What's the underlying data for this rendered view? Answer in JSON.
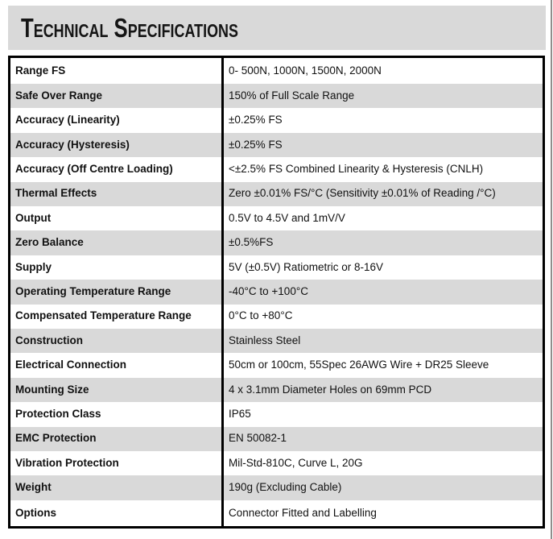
{
  "page": {
    "title": "Technical Specifications"
  },
  "colors": {
    "banner_bg": "#d9d9d9",
    "stripe_bg": "#d9d9d9",
    "table_border": "#000000",
    "text": "#111111",
    "page_edge_line": "#8f8e8c"
  },
  "table": {
    "rows": [
      {
        "label": "Range FS",
        "value": "0- 500N, 1000N, 1500N, 2000N"
      },
      {
        "label": "Safe Over Range",
        "value": "150% of Full Scale Range"
      },
      {
        "label": "Accuracy (Linearity)",
        "value": "±0.25% FS"
      },
      {
        "label": "Accuracy (Hysteresis)",
        "value": "±0.25% FS"
      },
      {
        "label": "Accuracy (Off Centre Loading)",
        "value": "<±2.5% FS Combined Linearity & Hysteresis (CNLH)"
      },
      {
        "label": "Thermal Effects",
        "value": "Zero ±0.01% FS/°C (Sensitivity ±0.01% of Reading /°C)"
      },
      {
        "label": "Output",
        "value": "0.5V to 4.5V and 1mV/V"
      },
      {
        "label": "Zero Balance",
        "value": "±0.5%FS"
      },
      {
        "label": "Supply",
        "value": "5V (±0.5V) Ratiometric or 8-16V"
      },
      {
        "label": "Operating Temperature Range",
        "value": "-40°C to +100°C"
      },
      {
        "label": "Compensated Temperature Range",
        "value": "0°C to +80°C"
      },
      {
        "label": "Construction",
        "value": "Stainless Steel"
      },
      {
        "label": "Electrical Connection",
        "value": "50cm or 100cm, 55Spec 26AWG Wire + DR25 Sleeve"
      },
      {
        "label": "Mounting Size",
        "value": "4 x 3.1mm Diameter Holes on 69mm PCD"
      },
      {
        "label": "Protection Class",
        "value": "IP65"
      },
      {
        "label": "EMC Protection",
        "value": "EN 50082-1"
      },
      {
        "label": "Vibration Protection",
        "value": "Mil-Std-810C, Curve L, 20G"
      },
      {
        "label": "Weight",
        "value": "190g (Excluding Cable)"
      },
      {
        "label": "Options",
        "value": "Connector Fitted and Labelling"
      }
    ]
  }
}
